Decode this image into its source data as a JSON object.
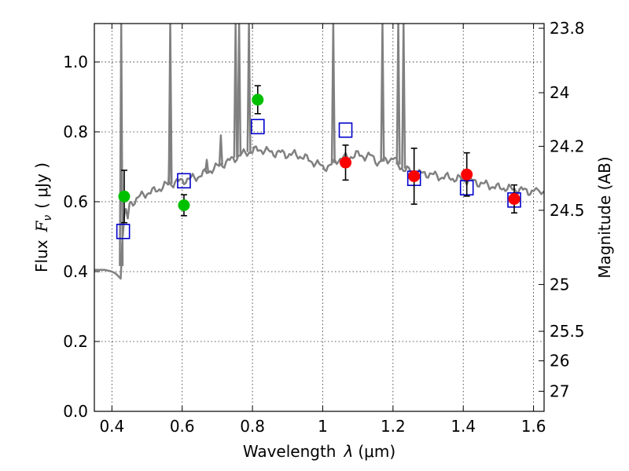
{
  "chart_data": {
    "type": "scatter",
    "xlabel_main": "Wavelength",
    "xlabel_lambda": "λ",
    "xlabel_unit": "(μm)",
    "ylabel_main": "Flux",
    "ylabel_symbol": "F",
    "ylabel_sub": "ν",
    "ylabel_unit": "( μJy )",
    "y2label": "Magnitude (AB)",
    "xlim": [
      0.35,
      1.63
    ],
    "ylim": [
      0.0,
      1.11
    ],
    "x_ticks": [
      0.4,
      0.6,
      0.8,
      1.0,
      1.2,
      1.4,
      1.6
    ],
    "x_tick_labels": [
      "0.4",
      "0.6",
      "0.8",
      "1",
      "1.2",
      "1.4",
      "1.6"
    ],
    "y_ticks": [
      0.0,
      0.2,
      0.4,
      0.6,
      0.8,
      1.0
    ],
    "y_tick_labels": [
      "0.0",
      "0.2",
      "0.4",
      "0.6",
      "0.8",
      "1.0"
    ],
    "mag_ticks": [
      23.8,
      24,
      24.2,
      24.5,
      25,
      25.5,
      26,
      27
    ],
    "mag_tick_labels": [
      "23.8",
      "24",
      "24.2",
      "24.5",
      "25",
      "25.5",
      "26",
      "27"
    ],
    "grid": true,
    "colors": {
      "model": "#808080",
      "green": "#00c000",
      "red": "#ff0000",
      "box": "#0000cc",
      "errorbar": "#000000"
    },
    "model_spectrum": {
      "name": "model SED",
      "x": [
        0.35,
        0.38,
        0.4,
        0.41,
        0.42,
        0.425,
        0.43,
        0.435,
        0.44,
        0.445,
        0.45,
        0.46,
        0.48,
        0.5,
        0.52,
        0.54,
        0.56,
        0.58,
        0.6,
        0.62,
        0.64,
        0.66,
        0.68,
        0.7,
        0.72,
        0.74,
        0.76,
        0.78,
        0.8,
        0.82,
        0.84,
        0.86,
        0.88,
        0.9,
        0.92,
        0.94,
        0.96,
        0.98,
        1.0,
        1.02,
        1.04,
        1.06,
        1.08,
        1.1,
        1.12,
        1.14,
        1.16,
        1.18,
        1.2,
        1.22,
        1.24,
        1.26,
        1.28,
        1.3,
        1.32,
        1.34,
        1.36,
        1.38,
        1.4,
        1.42,
        1.44,
        1.46,
        1.48,
        1.5,
        1.52,
        1.54,
        1.56,
        1.58,
        1.6,
        1.63
      ],
      "y": [
        0.405,
        0.405,
        0.4,
        0.395,
        0.385,
        0.38,
        0.5,
        0.56,
        0.57,
        0.55,
        0.59,
        0.6,
        0.615,
        0.625,
        0.63,
        0.64,
        0.65,
        0.655,
        0.66,
        0.665,
        0.67,
        0.68,
        0.69,
        0.7,
        0.71,
        0.72,
        0.73,
        0.74,
        0.745,
        0.75,
        0.745,
        0.74,
        0.74,
        0.735,
        0.735,
        0.73,
        0.72,
        0.71,
        0.7,
        0.7,
        0.72,
        0.725,
        0.73,
        0.735,
        0.73,
        0.73,
        0.71,
        0.72,
        0.725,
        0.7,
        0.69,
        0.685,
        0.68,
        0.68,
        0.675,
        0.67,
        0.67,
        0.665,
        0.665,
        0.66,
        0.655,
        0.65,
        0.645,
        0.64,
        0.64,
        0.635,
        0.635,
        0.63,
        0.63,
        0.63
      ]
    },
    "emission_lines": [
      {
        "x": 0.4265,
        "peak": 1.11
      },
      {
        "x": 0.566,
        "peak": 1.11
      },
      {
        "x": 0.752,
        "peak": 1.11
      },
      {
        "x": 0.762,
        "peak": 1.11
      },
      {
        "x": 0.79,
        "peak": 1.11
      },
      {
        "x": 1.03,
        "peak": 1.11
      },
      {
        "x": 1.17,
        "peak": 1.11
      },
      {
        "x": 1.215,
        "peak": 1.11
      },
      {
        "x": 1.23,
        "peak": 1.11
      },
      {
        "x": 0.565,
        "peak": 0.78
      },
      {
        "x": 0.67,
        "peak": 0.72
      },
      {
        "x": 0.71,
        "peak": 0.79
      }
    ],
    "series": [
      {
        "name": "green points",
        "marker": "circle",
        "x": [
          0.435,
          0.605,
          0.815
        ],
        "y": [
          0.615,
          0.59,
          0.892
        ],
        "yerr": [
          0.075,
          0.03,
          0.04
        ]
      },
      {
        "name": "red points",
        "marker": "circle",
        "x": [
          1.065,
          1.26,
          1.41,
          1.545
        ],
        "y": [
          0.712,
          0.673,
          0.678,
          0.608
        ],
        "yerr": [
          0.05,
          0.08,
          0.062,
          0.04
        ]
      },
      {
        "name": "model photometry",
        "marker": "square",
        "x": [
          0.432,
          0.605,
          0.815,
          1.065,
          1.26,
          1.41,
          1.545
        ],
        "y": [
          0.515,
          0.66,
          0.815,
          0.805,
          0.667,
          0.64,
          0.605
        ]
      }
    ]
  }
}
